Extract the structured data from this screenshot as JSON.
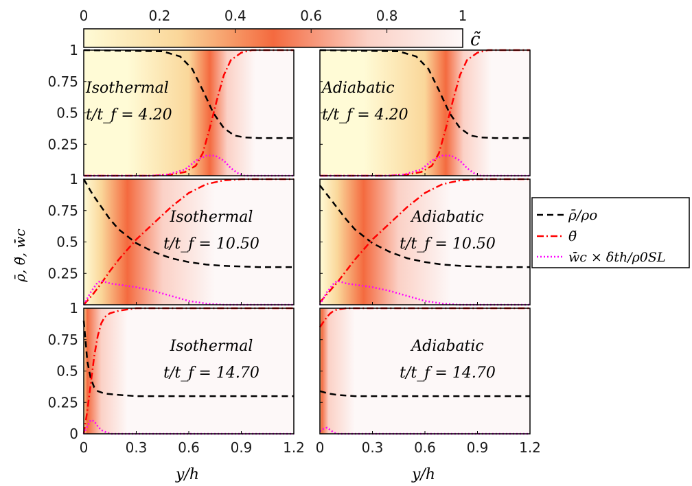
{
  "colorbar": {
    "label": "c̃",
    "ticks": [
      "0",
      "0.2",
      "0.4",
      "0.6",
      "0.8",
      "1"
    ],
    "colormap": [
      "#fffbd6",
      "#fad79a",
      "#f46a3f",
      "#fbd1c6",
      "#fdf8f8"
    ]
  },
  "legend": {
    "entries": [
      {
        "label": "ρ̄/ρo",
        "color": "#000000",
        "style": "dashed"
      },
      {
        "label": "θ̃",
        "color": "#ff0000",
        "style": "dashdot"
      },
      {
        "label": "w̄̇c × δth/ρ0SL",
        "color": "#ff00ff",
        "style": "dotted"
      }
    ]
  },
  "ylabel": "ρ̄, θ̃, w̄̇c",
  "xlabel": "y/h",
  "xticks": [
    "0",
    "0.3",
    "0.6",
    "0.9",
    "1.2"
  ],
  "yticks": [
    "0",
    "0.25",
    "0.5",
    "0.75",
    "1"
  ],
  "chart_data": [
    {
      "type": "line",
      "row": 0,
      "col": 0,
      "title": "Isothermal",
      "time": "t/t_f = 4.20",
      "xlim": [
        0,
        1.2
      ],
      "ylim": [
        0,
        1
      ],
      "flame_peak": 0.72,
      "flame_band": [
        0.25,
        0.6,
        0.82,
        0.98
      ],
      "series": [
        {
          "name": "rho",
          "x": [
            0,
            0.45,
            0.55,
            0.62,
            0.68,
            0.74,
            0.8,
            0.86,
            0.92,
            1.0,
            1.2
          ],
          "y": [
            1.0,
            0.99,
            0.95,
            0.85,
            0.68,
            0.5,
            0.38,
            0.32,
            0.305,
            0.3,
            0.3
          ]
        },
        {
          "name": "theta",
          "x": [
            0,
            0.4,
            0.5,
            0.58,
            0.64,
            0.68,
            0.72,
            0.76,
            0.8,
            0.84,
            0.9,
            0.96,
            1.02,
            1.2
          ],
          "y": [
            0,
            0,
            0.01,
            0.03,
            0.08,
            0.18,
            0.38,
            0.6,
            0.8,
            0.92,
            0.98,
            1.0,
            1.0,
            1.0
          ]
        },
        {
          "name": "omega",
          "x": [
            0,
            0.38,
            0.48,
            0.58,
            0.64,
            0.7,
            0.75,
            0.8,
            0.84,
            0.88,
            0.92,
            1.2
          ],
          "y": [
            0,
            0,
            0.01,
            0.05,
            0.12,
            0.16,
            0.16,
            0.12,
            0.06,
            0.02,
            0,
            0
          ]
        }
      ]
    },
    {
      "type": "line",
      "row": 0,
      "col": 1,
      "title": "Adiabatic",
      "time": "t/t_f = 4.20",
      "xlim": [
        0,
        1.2
      ],
      "ylim": [
        0,
        1
      ],
      "flame_peak": 0.72,
      "flame_band": [
        0.25,
        0.6,
        0.82,
        0.98
      ],
      "series": [
        {
          "name": "rho",
          "x": [
            0,
            0.45,
            0.55,
            0.62,
            0.68,
            0.74,
            0.8,
            0.86,
            0.92,
            1.0,
            1.2
          ],
          "y": [
            1.0,
            0.99,
            0.95,
            0.85,
            0.68,
            0.5,
            0.38,
            0.32,
            0.305,
            0.3,
            0.3
          ]
        },
        {
          "name": "theta",
          "x": [
            0,
            0.4,
            0.5,
            0.58,
            0.64,
            0.68,
            0.72,
            0.76,
            0.8,
            0.84,
            0.9,
            0.96,
            1.02,
            1.2
          ],
          "y": [
            0,
            0,
            0.01,
            0.03,
            0.08,
            0.18,
            0.38,
            0.6,
            0.8,
            0.92,
            0.98,
            1.0,
            1.0,
            1.0
          ]
        },
        {
          "name": "omega",
          "x": [
            0,
            0.38,
            0.48,
            0.58,
            0.64,
            0.7,
            0.75,
            0.8,
            0.84,
            0.88,
            0.92,
            1.2
          ],
          "y": [
            0,
            0,
            0.01,
            0.05,
            0.12,
            0.16,
            0.16,
            0.12,
            0.06,
            0.02,
            0,
            0
          ]
        }
      ]
    },
    {
      "type": "line",
      "row": 1,
      "col": 0,
      "title": "Isothermal",
      "time": "t/t_f = 10.50",
      "xlim": [
        0,
        1.2
      ],
      "ylim": [
        0,
        1
      ],
      "flame_peak": 0.25,
      "flame_band": [
        0.0,
        0.1,
        0.45,
        0.75
      ],
      "series": [
        {
          "name": "rho",
          "x": [
            0,
            0.05,
            0.1,
            0.15,
            0.2,
            0.3,
            0.4,
            0.5,
            0.6,
            0.7,
            0.8,
            0.9,
            1.0,
            1.2
          ],
          "y": [
            1.0,
            0.88,
            0.78,
            0.68,
            0.6,
            0.49,
            0.42,
            0.37,
            0.34,
            0.32,
            0.31,
            0.305,
            0.3,
            0.3
          ]
        },
        {
          "name": "theta",
          "x": [
            0,
            0.05,
            0.1,
            0.15,
            0.2,
            0.3,
            0.4,
            0.5,
            0.6,
            0.7,
            0.8,
            0.9,
            1.0,
            1.2
          ],
          "y": [
            0,
            0.08,
            0.17,
            0.27,
            0.36,
            0.52,
            0.65,
            0.78,
            0.89,
            0.96,
            0.99,
            1.0,
            1.0,
            1.0
          ]
        },
        {
          "name": "omega",
          "x": [
            0,
            0.04,
            0.08,
            0.1,
            0.15,
            0.2,
            0.3,
            0.4,
            0.5,
            0.6,
            0.7,
            0.8,
            1.2
          ],
          "y": [
            0,
            0.1,
            0.18,
            0.19,
            0.17,
            0.16,
            0.14,
            0.11,
            0.07,
            0.03,
            0.01,
            0,
            0
          ]
        }
      ]
    },
    {
      "type": "line",
      "row": 1,
      "col": 1,
      "title": "Adiabatic",
      "time": "t/t_f = 10.50",
      "xlim": [
        0,
        1.2
      ],
      "ylim": [
        0,
        1
      ],
      "flame_peak": 0.25,
      "flame_band": [
        0.0,
        0.1,
        0.45,
        0.75
      ],
      "series": [
        {
          "name": "rho",
          "x": [
            0,
            0.05,
            0.1,
            0.15,
            0.2,
            0.3,
            0.4,
            0.5,
            0.6,
            0.7,
            0.8,
            0.9,
            1.0,
            1.2
          ],
          "y": [
            0.95,
            0.86,
            0.77,
            0.68,
            0.6,
            0.49,
            0.42,
            0.37,
            0.34,
            0.32,
            0.31,
            0.305,
            0.3,
            0.3
          ]
        },
        {
          "name": "theta",
          "x": [
            0,
            0.05,
            0.1,
            0.15,
            0.2,
            0.3,
            0.4,
            0.5,
            0.6,
            0.7,
            0.8,
            0.9,
            1.0,
            1.2
          ],
          "y": [
            0.02,
            0.1,
            0.18,
            0.27,
            0.36,
            0.52,
            0.65,
            0.78,
            0.89,
            0.96,
            0.99,
            1.0,
            1.0,
            1.0
          ]
        },
        {
          "name": "omega",
          "x": [
            0,
            0.04,
            0.08,
            0.1,
            0.15,
            0.2,
            0.3,
            0.4,
            0.5,
            0.6,
            0.7,
            0.8,
            1.2
          ],
          "y": [
            0,
            0.1,
            0.17,
            0.19,
            0.17,
            0.16,
            0.14,
            0.11,
            0.07,
            0.03,
            0.01,
            0,
            0
          ]
        }
      ]
    },
    {
      "type": "line",
      "row": 2,
      "col": 0,
      "title": "Isothermal",
      "time": "t/t_f = 14.70",
      "xlim": [
        0,
        1.2
      ],
      "ylim": [
        0,
        1
      ],
      "flame_peak": 0.02,
      "flame_band": [
        0.0,
        0.0,
        0.1,
        0.25
      ],
      "series": [
        {
          "name": "rho",
          "x": [
            0,
            0.01,
            0.02,
            0.04,
            0.06,
            0.08,
            0.12,
            0.2,
            0.3,
            0.5,
            1.2
          ],
          "y": [
            0.9,
            0.75,
            0.58,
            0.44,
            0.37,
            0.34,
            0.32,
            0.31,
            0.3,
            0.3,
            0.3
          ]
        },
        {
          "name": "theta",
          "x": [
            0,
            0.02,
            0.04,
            0.06,
            0.08,
            0.1,
            0.12,
            0.15,
            0.2,
            0.25,
            0.3,
            1.2
          ],
          "y": [
            0,
            0.18,
            0.4,
            0.62,
            0.78,
            0.88,
            0.93,
            0.96,
            0.98,
            0.99,
            1.0,
            1.0
          ]
        },
        {
          "name": "omega",
          "x": [
            0,
            0.02,
            0.04,
            0.06,
            0.08,
            0.1,
            0.13,
            0.16,
            0.2,
            1.2
          ],
          "y": [
            0,
            0.06,
            0.11,
            0.1,
            0.06,
            0.03,
            0.01,
            0,
            0,
            0
          ]
        }
      ]
    },
    {
      "type": "line",
      "row": 2,
      "col": 1,
      "title": "Adiabatic",
      "time": "t/t_f = 14.70",
      "xlim": [
        0,
        1.2
      ],
      "ylim": [
        0,
        1
      ],
      "flame_peak": 0.01,
      "flame_band": [
        0.0,
        0.0,
        0.05,
        0.2
      ],
      "series": [
        {
          "name": "rho",
          "x": [
            0,
            0.05,
            0.1,
            0.15,
            0.2,
            0.3,
            1.2
          ],
          "y": [
            0.34,
            0.32,
            0.31,
            0.305,
            0.3,
            0.3,
            0.3
          ]
        },
        {
          "name": "theta",
          "x": [
            0,
            0.02,
            0.04,
            0.06,
            0.08,
            0.1,
            0.15,
            0.2,
            1.2
          ],
          "y": [
            0.85,
            0.89,
            0.93,
            0.96,
            0.98,
            0.99,
            1.0,
            1.0,
            1.0
          ]
        },
        {
          "name": "omega",
          "x": [
            0,
            0.02,
            0.04,
            0.06,
            0.08,
            0.1,
            1.2
          ],
          "y": [
            0.02,
            0.04,
            0.05,
            0.03,
            0.01,
            0,
            0
          ]
        }
      ]
    }
  ]
}
